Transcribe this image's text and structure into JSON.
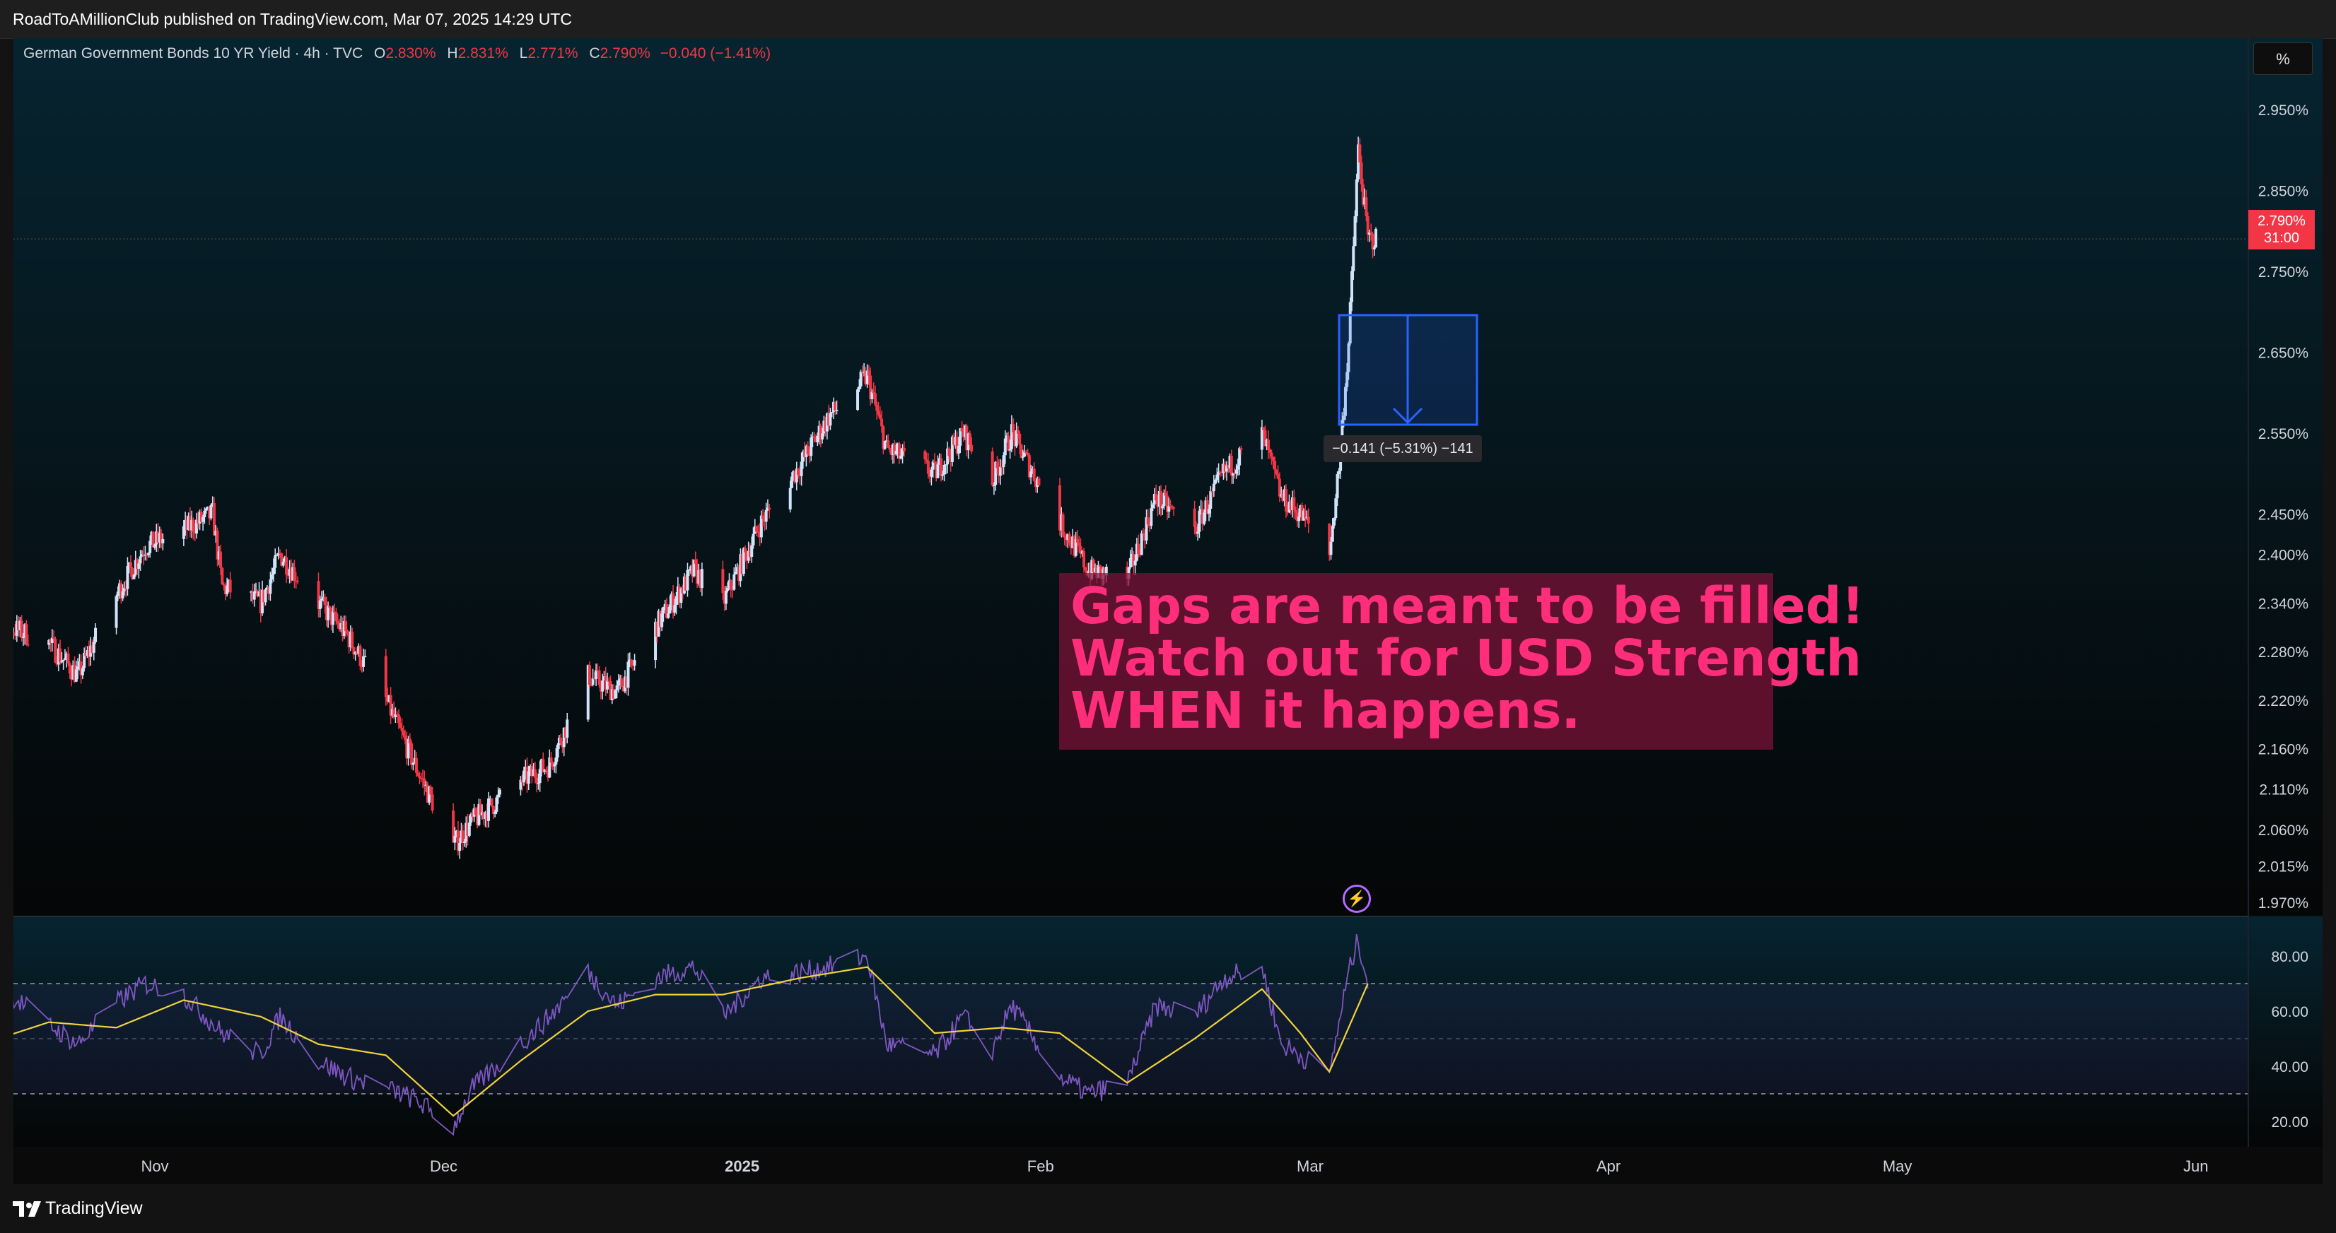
{
  "header": {
    "published": "RoadToAMillionClub published on TradingView.com, Mar 07, 2025 14:29 UTC"
  },
  "legend": {
    "symbol": "German Government Bonds 10 YR Yield · 4h · TVC",
    "o_label": "O",
    "o_value": "2.830%",
    "h_label": "H",
    "h_value": "2.831%",
    "l_label": "L",
    "l_value": "2.771%",
    "c_label": "C",
    "c_value": "2.790%",
    "change": "−0.040 (−1.41%)"
  },
  "scale_button": "%",
  "price_tag": {
    "price": "2.790%",
    "countdown": "31:00"
  },
  "measure": {
    "label": "−0.141 (−5.31%) −141"
  },
  "annotation": {
    "lines": [
      "Gaps are meant to be filled!",
      "Watch out for USD Strength",
      "WHEN it happens."
    ]
  },
  "footer": {
    "brand": "TradingView"
  },
  "colors": {
    "up": "#d1e3f8",
    "down": "#f23645",
    "rsi": "#7e57c2",
    "rsi_ma": "#f0d23c",
    "measure": "#2962ff",
    "annotation_text": "#ff2e7a"
  },
  "icons": {
    "measure": "down-arrow-icon",
    "alert": "lightning-icon",
    "logo": "tradingview-logo-icon"
  },
  "chart_data": [
    {
      "type": "candlestick",
      "title": "German Government Bonds 10 YR Yield · 4h · TVC",
      "yticks": [
        "2.950%",
        "2.850%",
        "2.750%",
        "2.650%",
        "2.550%",
        "2.450%",
        "2.400%",
        "2.340%",
        "2.280%",
        "2.220%",
        "2.160%",
        "2.110%",
        "2.060%",
        "2.015%",
        "1.970%"
      ],
      "xticks": [
        "Nov",
        "Dec",
        "2025",
        "Feb",
        "Mar",
        "Apr",
        "May",
        "Jun"
      ],
      "ylim": [
        1.955,
        2.985
      ],
      "last_close": 2.79,
      "keypoints": [
        {
          "d": "2024-10-14",
          "v": 2.2
        },
        {
          "d": "2024-10-17",
          "v": 2.31
        },
        {
          "d": "2024-10-21",
          "v": 2.29
        },
        {
          "d": "2024-10-24",
          "v": 2.25
        },
        {
          "d": "2024-10-28",
          "v": 2.35
        },
        {
          "d": "2024-10-31",
          "v": 2.41
        },
        {
          "d": "2024-11-04",
          "v": 2.43
        },
        {
          "d": "2024-11-07",
          "v": 2.45
        },
        {
          "d": "2024-11-08",
          "v": 2.36
        },
        {
          "d": "2024-11-12",
          "v": 2.34
        },
        {
          "d": "2024-11-14",
          "v": 2.4
        },
        {
          "d": "2024-11-18",
          "v": 2.34
        },
        {
          "d": "2024-11-21",
          "v": 2.3
        },
        {
          "d": "2024-11-25",
          "v": 2.22
        },
        {
          "d": "2024-11-28",
          "v": 2.14
        },
        {
          "d": "2024-12-02",
          "v": 2.04
        },
        {
          "d": "2024-12-04",
          "v": 2.07
        },
        {
          "d": "2024-12-09",
          "v": 2.12
        },
        {
          "d": "2024-12-12",
          "v": 2.14
        },
        {
          "d": "2024-12-16",
          "v": 2.25
        },
        {
          "d": "2024-12-19",
          "v": 2.23
        },
        {
          "d": "2024-12-23",
          "v": 2.31
        },
        {
          "d": "2024-12-27",
          "v": 2.38
        },
        {
          "d": "2024-12-30",
          "v": 2.34
        },
        {
          "d": "2025-01-03",
          "v": 2.44
        },
        {
          "d": "2025-01-07",
          "v": 2.51
        },
        {
          "d": "2025-01-10",
          "v": 2.57
        },
        {
          "d": "2025-01-14",
          "v": 2.62
        },
        {
          "d": "2025-01-16",
          "v": 2.53
        },
        {
          "d": "2025-01-21",
          "v": 2.5
        },
        {
          "d": "2025-01-24",
          "v": 2.55
        },
        {
          "d": "2025-01-27",
          "v": 2.49
        },
        {
          "d": "2025-01-29",
          "v": 2.55
        },
        {
          "d": "2025-02-03",
          "v": 2.44
        },
        {
          "d": "2025-02-06",
          "v": 2.38
        },
        {
          "d": "2025-02-10",
          "v": 2.37
        },
        {
          "d": "2025-02-13",
          "v": 2.47
        },
        {
          "d": "2025-02-17",
          "v": 2.43
        },
        {
          "d": "2025-02-20",
          "v": 2.5
        },
        {
          "d": "2025-02-24",
          "v": 2.55
        },
        {
          "d": "2025-02-26",
          "v": 2.47
        },
        {
          "d": "2025-02-28",
          "v": 2.45
        },
        {
          "d": "2025-03-03",
          "v": 2.4
        },
        {
          "d": "2025-03-04",
          "v": 2.51
        },
        {
          "d": "2025-03-05",
          "v": 2.66
        },
        {
          "d": "2025-03-06",
          "v": 2.9
        },
        {
          "d": "2025-03-07",
          "v": 2.79
        }
      ],
      "gap_measure": {
        "from": 2.66,
        "to": 2.52,
        "change": -0.141,
        "change_pct": -5.31
      }
    },
    {
      "type": "line",
      "title": "RSI",
      "yticks": [
        "80.00",
        "60.00",
        "40.00",
        "20.00"
      ],
      "ylim": [
        10,
        90
      ],
      "bands": [
        30,
        50,
        70
      ],
      "series": [
        {
          "role": "rsi",
          "keypoints": [
            {
              "d": "2024-10-14",
              "v": 44
            },
            {
              "d": "2024-10-17",
              "v": 66
            },
            {
              "d": "2024-10-21",
              "v": 55
            },
            {
              "d": "2024-10-24",
              "v": 48
            },
            {
              "d": "2024-10-28",
              "v": 63
            },
            {
              "d": "2024-10-31",
              "v": 70
            },
            {
              "d": "2024-11-04",
              "v": 66
            },
            {
              "d": "2024-11-08",
              "v": 52
            },
            {
              "d": "2024-11-12",
              "v": 44
            },
            {
              "d": "2024-11-14",
              "v": 58
            },
            {
              "d": "2024-11-18",
              "v": 42
            },
            {
              "d": "2024-11-21",
              "v": 36
            },
            {
              "d": "2024-11-25",
              "v": 32
            },
            {
              "d": "2024-11-28",
              "v": 28
            },
            {
              "d": "2024-12-02",
              "v": 18
            },
            {
              "d": "2024-12-04",
              "v": 32
            },
            {
              "d": "2024-12-09",
              "v": 48
            },
            {
              "d": "2024-12-12",
              "v": 58
            },
            {
              "d": "2024-12-16",
              "v": 74
            },
            {
              "d": "2024-12-19",
              "v": 62
            },
            {
              "d": "2024-12-23",
              "v": 72
            },
            {
              "d": "2024-12-27",
              "v": 76
            },
            {
              "d": "2024-12-30",
              "v": 58
            },
            {
              "d": "2025-01-03",
              "v": 72
            },
            {
              "d": "2025-01-07",
              "v": 74
            },
            {
              "d": "2025-01-10",
              "v": 76
            },
            {
              "d": "2025-01-14",
              "v": 80
            },
            {
              "d": "2025-01-16",
              "v": 48
            },
            {
              "d": "2025-01-21",
              "v": 44
            },
            {
              "d": "2025-01-24",
              "v": 58
            },
            {
              "d": "2025-01-27",
              "v": 46
            },
            {
              "d": "2025-01-29",
              "v": 62
            },
            {
              "d": "2025-02-03",
              "v": 36
            },
            {
              "d": "2025-02-06",
              "v": 30
            },
            {
              "d": "2025-02-10",
              "v": 34
            },
            {
              "d": "2025-02-13",
              "v": 62
            },
            {
              "d": "2025-02-17",
              "v": 58
            },
            {
              "d": "2025-02-20",
              "v": 72
            },
            {
              "d": "2025-02-24",
              "v": 76
            },
            {
              "d": "2025-02-26",
              "v": 48
            },
            {
              "d": "2025-02-28",
              "v": 44
            },
            {
              "d": "2025-03-03",
              "v": 36
            },
            {
              "d": "2025-03-04",
              "v": 56
            },
            {
              "d": "2025-03-05",
              "v": 74
            },
            {
              "d": "2025-03-06",
              "v": 86
            },
            {
              "d": "2025-03-07",
              "v": 70
            }
          ]
        },
        {
          "role": "ma",
          "keypoints": [
            {
              "d": "2024-10-14",
              "v": 48
            },
            {
              "d": "2024-10-21",
              "v": 56
            },
            {
              "d": "2024-10-28",
              "v": 54
            },
            {
              "d": "2024-11-04",
              "v": 64
            },
            {
              "d": "2024-11-12",
              "v": 58
            },
            {
              "d": "2024-11-18",
              "v": 48
            },
            {
              "d": "2024-11-25",
              "v": 44
            },
            {
              "d": "2024-12-02",
              "v": 22
            },
            {
              "d": "2024-12-09",
              "v": 42
            },
            {
              "d": "2024-12-16",
              "v": 60
            },
            {
              "d": "2024-12-23",
              "v": 66
            },
            {
              "d": "2024-12-30",
              "v": 66
            },
            {
              "d": "2025-01-07",
              "v": 72
            },
            {
              "d": "2025-01-14",
              "v": 76
            },
            {
              "d": "2025-01-21",
              "v": 52
            },
            {
              "d": "2025-01-28",
              "v": 54
            },
            {
              "d": "2025-02-03",
              "v": 52
            },
            {
              "d": "2025-02-10",
              "v": 34
            },
            {
              "d": "2025-02-17",
              "v": 50
            },
            {
              "d": "2025-02-24",
              "v": 68
            },
            {
              "d": "2025-02-28",
              "v": 52
            },
            {
              "d": "2025-03-03",
              "v": 38
            },
            {
              "d": "2025-03-07",
              "v": 70
            }
          ]
        }
      ]
    }
  ]
}
